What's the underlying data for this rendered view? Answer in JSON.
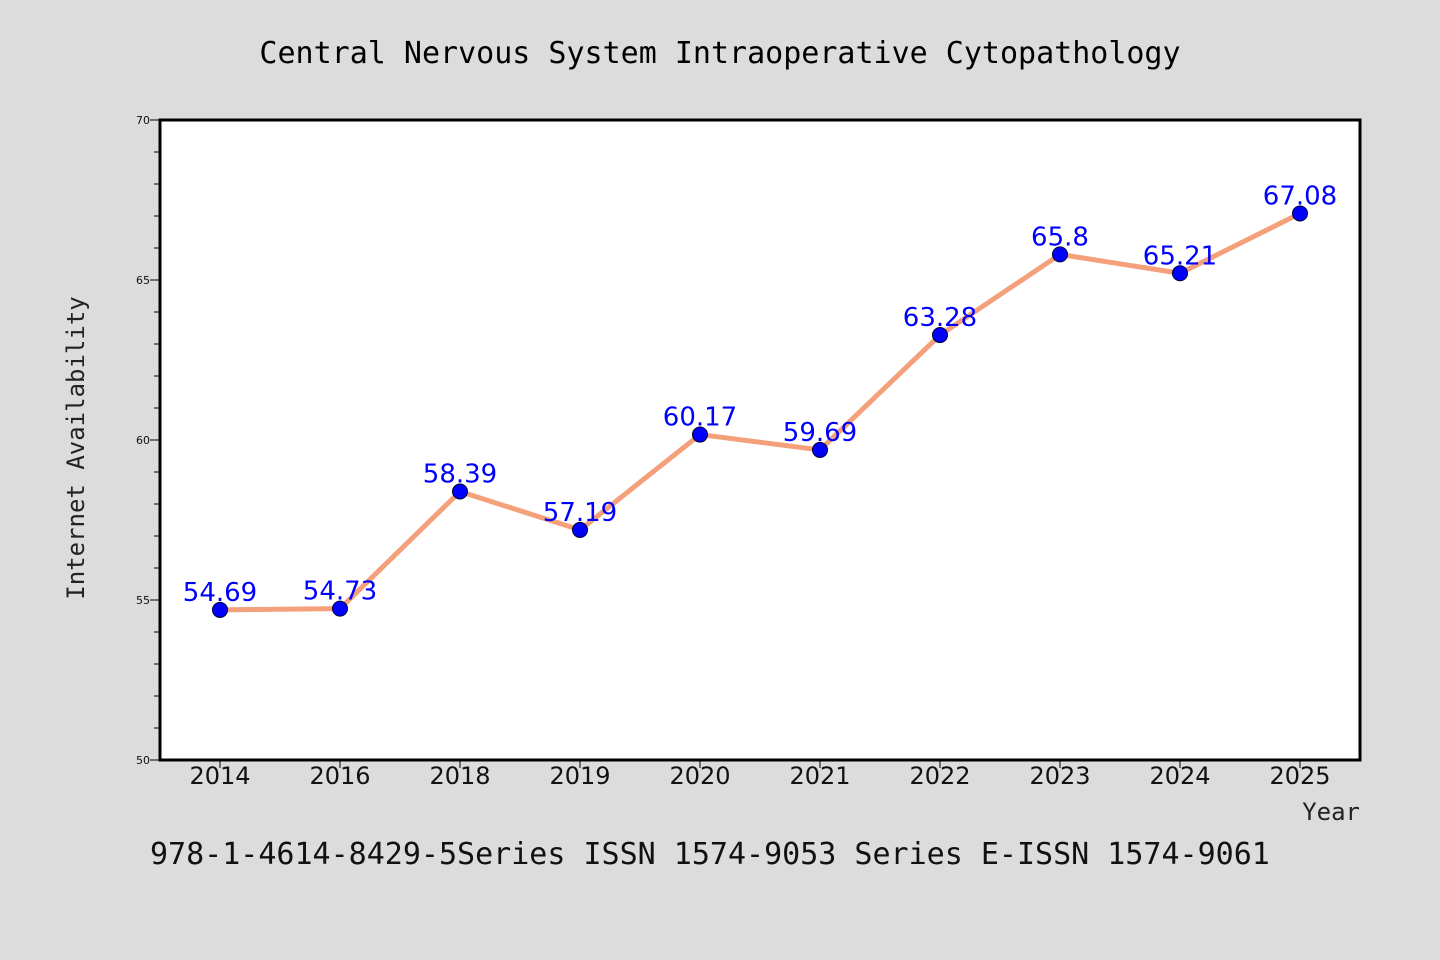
{
  "chart_data": {
    "type": "line",
    "title": "Central Nervous System Intraoperative Cytopathology",
    "xlabel": "Year",
    "ylabel": "Internet Availability",
    "categories": [
      "2014",
      "2016",
      "2018",
      "2019",
      "2020",
      "2021",
      "2022",
      "2023",
      "2024",
      "2025"
    ],
    "values": [
      54.69,
      54.73,
      58.39,
      57.19,
      60.17,
      59.69,
      63.28,
      65.8,
      65.21,
      67.08
    ],
    "value_labels": [
      "54.69",
      "54.73",
      "58.39",
      "57.19",
      "60.17",
      "59.69",
      "63.28",
      "65.8",
      "65.21",
      "67.08"
    ],
    "ylim": [
      50,
      70
    ],
    "yticks": [
      "50",
      "55",
      "60",
      "65",
      "70"
    ],
    "grid": false,
    "line_color": "#f4a07a",
    "marker_color": "#0000ff",
    "label_color": "#0000ff"
  },
  "footer": {
    "text": "978-1-4614-8429-5Series ISSN 1574-9053 Series E-ISSN 1574-9061"
  }
}
